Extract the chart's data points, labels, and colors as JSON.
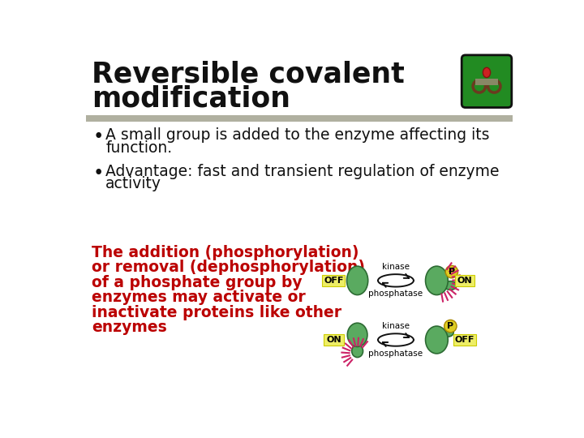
{
  "bg_color": "#ffffff",
  "title_line1": "Reversible covalent",
  "title_line2": "modification",
  "title_fontsize": 25,
  "title_color": "#111111",
  "separator_color": "#b0b0a0",
  "bullet_fontsize": 13.5,
  "bullet_color": "#111111",
  "bullet1_line1": "A small group is added to the enzyme affecting its",
  "bullet1_line2": "function.",
  "bullet2_line1": "Advantage: fast and transient regulation of enzyme",
  "bullet2_line2": "activity",
  "red_lines": [
    "The addition (phosphorylation)",
    "or removal (dephosphorylation)",
    "of a phosphate group by",
    "enzymes may activate or",
    "inactivate proteins like other",
    "enzymes"
  ],
  "red_color": "#bb0000",
  "red_fontsize": 13.5,
  "green": "#5aaa60",
  "green_edge": "#2d6b33",
  "yellow_p": "#ddcc22",
  "label_yellow": "#eeee66",
  "label_edge": "#cccc00",
  "spike_color": "#cc2266",
  "arrow_color": "#111111"
}
